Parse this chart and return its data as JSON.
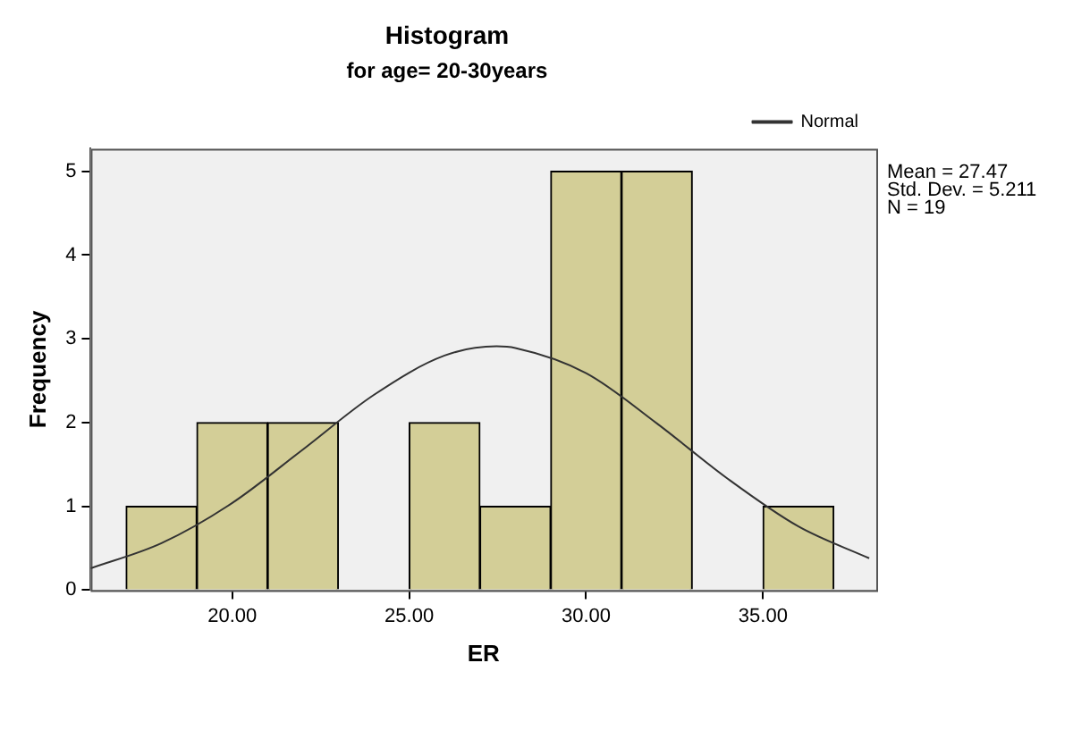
{
  "chart_data": {
    "type": "histogram",
    "title": "Histogram",
    "subtitle": "for age= 20-30years",
    "xlabel": "ER",
    "ylabel": "Frequency",
    "series": [
      {
        "color": "#d3ce97",
        "bins": [
          17,
          19,
          21,
          23,
          25,
          27,
          29,
          31,
          33,
          35,
          37
        ],
        "values": [
          1,
          2,
          2,
          0,
          2,
          1,
          5,
          5,
          0,
          1
        ]
      },
      {
        "type": "line",
        "name": "Normal",
        "color": "#333333",
        "x": [
          16,
          18,
          20,
          22,
          24,
          26,
          27.47,
          28,
          30,
          32,
          34,
          36,
          38
        ],
        "values": [
          0.26,
          0.56,
          1.04,
          1.68,
          2.33,
          2.8,
          2.91,
          2.89,
          2.59,
          1.99,
          1.33,
          0.76,
          0.38
        ]
      }
    ],
    "xlim": [
      16,
      38.2
    ],
    "xticks": [
      {
        "value": 20,
        "label": "20.00"
      },
      {
        "value": 25,
        "label": "25.00"
      },
      {
        "value": 30,
        "label": "30.00"
      },
      {
        "value": 35,
        "label": "35.00"
      }
    ],
    "ylim": [
      0,
      5.27
    ],
    "yticks": [
      0,
      1,
      2,
      3,
      4,
      5
    ],
    "annotations": [
      "Mean = 27.47",
      "Std. Dev. = 5.211",
      "N = 19"
    ],
    "legend": "top right",
    "grid": false,
    "marker": "none",
    "line_style": "solid"
  }
}
